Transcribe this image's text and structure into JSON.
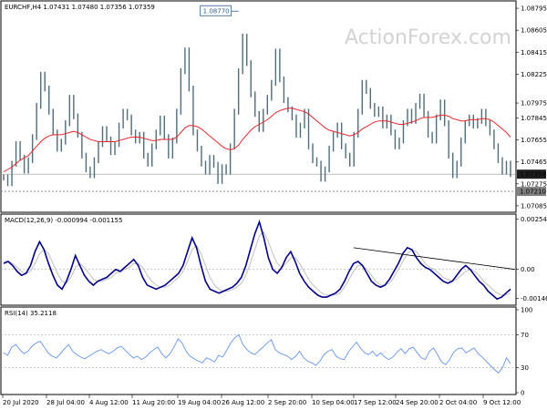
{
  "watermark": "ActionForex.com",
  "chart_data": [
    {
      "type": "candlestick",
      "header": "EURCHF,H4  1.07431 1.07480 1.07356 1.07359",
      "symbol": "EURCHF,H4",
      "ohlc": [
        1.07431,
        1.0748,
        1.07356,
        1.07359
      ],
      "y_ticks": [
        "1.07975",
        "1.07845",
        "1.07655",
        "1.07465",
        "1.07275",
        "1.07085"
      ],
      "y_ticks_top": [
        "1.08795",
        "1.08605",
        "1.08415",
        "1.08225"
      ],
      "ylim": [
        1.07045,
        1.08835
      ],
      "current_price": "1.07359",
      "support_level": "1.07210",
      "high_label": "1.08770",
      "high_value": 1.0877,
      "moving_average": "red",
      "close_series": [
        1.0733,
        1.0728,
        1.0745,
        1.0762,
        1.075,
        1.0739,
        1.0748,
        1.0768,
        1.0795,
        1.0822,
        1.081,
        1.079,
        1.0772,
        1.0758,
        1.0764,
        1.078,
        1.0802,
        1.0786,
        1.077,
        1.0752,
        1.074,
        1.0735,
        1.0748,
        1.0762,
        1.0775,
        1.0766,
        1.0755,
        1.0762,
        1.0778,
        1.079,
        1.0785,
        1.0772,
        1.0765,
        1.077,
        1.0752,
        1.0745,
        1.076,
        1.0772,
        1.0784,
        1.0768,
        1.0752,
        1.0765,
        1.079,
        1.0825,
        1.0843,
        1.081,
        1.0772,
        1.0758,
        1.0745,
        1.0738,
        1.075,
        1.0744,
        1.073,
        1.0742,
        1.0738,
        1.076,
        1.079,
        1.0825,
        1.0855,
        1.0832,
        1.0805,
        1.0788,
        1.0775,
        1.079,
        1.0802,
        1.0815,
        1.0842,
        1.0818,
        1.08,
        1.0792,
        1.0785,
        1.077,
        1.0778,
        1.079,
        1.076,
        1.0748,
        1.0745,
        1.0732,
        1.074,
        1.0758,
        1.077,
        1.0778,
        1.076,
        1.0752,
        1.0745,
        1.077,
        1.079,
        1.0815,
        1.0808,
        1.0795,
        1.0788,
        1.0792,
        1.0778,
        1.0785,
        1.0772,
        1.076,
        1.0765,
        1.078,
        1.079,
        1.0782,
        1.0795,
        1.0803,
        1.0788,
        1.077,
        1.0765,
        1.0785,
        1.0798,
        1.078,
        1.0752,
        1.0735,
        1.0745,
        1.0765,
        1.078,
        1.0785,
        1.0778,
        1.0782,
        1.079,
        1.078,
        1.0772,
        1.076,
        1.0748,
        1.0738,
        1.0745,
        1.0736
      ],
      "ma_series": [
        1.0738,
        1.074,
        1.0742,
        1.0745,
        1.0748,
        1.075,
        1.0752,
        1.0756,
        1.076,
        1.0764,
        1.0767,
        1.0769,
        1.077,
        1.077,
        1.077,
        1.0771,
        1.0772,
        1.0773,
        1.0772,
        1.077,
        1.0768,
        1.0766,
        1.0765,
        1.0764,
        1.0764,
        1.0764,
        1.0764,
        1.0764,
        1.0765,
        1.0766,
        1.0767,
        1.0768,
        1.0768,
        1.0768,
        1.0767,
        1.0766,
        1.0765,
        1.0765,
        1.0766,
        1.0766,
        1.0766,
        1.0766,
        1.0768,
        1.0772,
        1.0776,
        1.0778,
        1.0778,
        1.0777,
        1.0775,
        1.0772,
        1.0769,
        1.0766,
        1.0763,
        1.076,
        1.0758,
        1.0757,
        1.0758,
        1.0761,
        1.0766,
        1.077,
        1.0774,
        1.0777,
        1.0779,
        1.0781,
        1.0783,
        1.0786,
        1.0789,
        1.0791,
        1.0792,
        1.0793,
        1.0793,
        1.0792,
        1.0791,
        1.079,
        1.0788,
        1.0785,
        1.0782,
        1.0779,
        1.0776,
        1.0774,
        1.0773,
        1.0772,
        1.0771,
        1.077,
        1.0769,
        1.077,
        1.0772,
        1.0775,
        1.0777,
        1.0779,
        1.0781,
        1.0782,
        1.0782,
        1.0782,
        1.0781,
        1.078,
        1.0779,
        1.0779,
        1.078,
        1.0781,
        1.0782,
        1.0784,
        1.0785,
        1.0785,
        1.0785,
        1.0786,
        1.0787,
        1.0787,
        1.0786,
        1.0784,
        1.0783,
        1.0782,
        1.0782,
        1.0783,
        1.0783,
        1.0783,
        1.0784,
        1.0784,
        1.0783,
        1.0781,
        1.0778,
        1.0775,
        1.0772,
        1.0768
      ]
    },
    {
      "type": "line",
      "header": "MACD(12,26,9) -0.000994 -0.001155",
      "label": "MACD(12,26,9)",
      "main_value": "-0.000994",
      "signal_value": "-0.001155",
      "y_ticks": [
        "0.002547",
        "0.00",
        "-0.001468"
      ],
      "ylim": [
        -0.00172,
        0.00266
      ],
      "series": [
        {
          "name": "MACD",
          "color": "#00008b",
          "values": [
            0.0003,
            0.0004,
            0.0002,
            -0.0001,
            -0.0003,
            -0.0002,
            0.0002,
            0.0009,
            0.0014,
            0.001,
            0.0003,
            -0.0003,
            -0.0008,
            -0.001,
            -0.0006,
            0.0,
            0.0007,
            0.0002,
            -0.0003,
            -0.0006,
            -0.0008,
            -0.0006,
            -0.0005,
            -0.0004,
            -0.0002,
            0.0,
            -0.0001,
            0.0001,
            0.0003,
            0.0005,
            0.0002,
            -0.0004,
            -0.0008,
            -0.0009,
            -0.001,
            -0.0009,
            -0.0008,
            -0.0006,
            -0.0004,
            -0.0002,
            0.0002,
            0.0009,
            0.0016,
            0.0011,
            0.0002,
            -0.0006,
            -0.001,
            -0.0011,
            -0.0012,
            -0.0011,
            -0.001,
            -0.0009,
            -0.0007,
            -0.0004,
            0.0002,
            0.001,
            0.0018,
            0.0024,
            0.0016,
            0.0006,
            0.0,
            -0.0002,
            0.0001,
            0.0006,
            0.0009,
            0.0004,
            -0.0002,
            -0.0006,
            -0.0009,
            -0.0011,
            -0.0013,
            -0.0014,
            -0.0014,
            -0.0013,
            -0.0012,
            -0.001,
            -0.0006,
            -0.0001,
            0.0003,
            0.0004,
            0.0002,
            -0.0002,
            -0.0006,
            -0.0008,
            -0.0009,
            -0.0008,
            -0.0005,
            -0.0001,
            0.0003,
            0.0008,
            0.0011,
            0.001,
            0.0006,
            0.0003,
            0.0001,
            0.0,
            -0.0002,
            -0.0004,
            -0.0006,
            -0.0007,
            -0.0006,
            -0.0003,
            0.0,
            0.0002,
            0.0,
            -0.0003,
            -0.0006,
            -0.0008,
            -0.0011,
            -0.0013,
            -0.0015,
            -0.0014,
            -0.0012,
            -0.001
          ]
        },
        {
          "name": "Signal",
          "color": "#c0c0c0",
          "values": [
            0.0004,
            0.0004,
            0.0003,
            0.0001,
            -0.0001,
            -0.0002,
            -0.0001,
            0.0003,
            0.0008,
            0.001,
            0.0008,
            0.0003,
            -0.0002,
            -0.0006,
            -0.0007,
            -0.0004,
            0.0001,
            0.0003,
            0.0001,
            -0.0002,
            -0.0005,
            -0.0006,
            -0.0006,
            -0.0005,
            -0.0004,
            -0.0002,
            -0.0001,
            0.0,
            0.0001,
            0.0003,
            0.0003,
            0.0001,
            -0.0003,
            -0.0006,
            -0.0008,
            -0.0009,
            -0.0009,
            -0.0008,
            -0.0006,
            -0.0004,
            -0.0001,
            0.0004,
            0.001,
            0.0012,
            0.0008,
            0.0002,
            -0.0004,
            -0.0008,
            -0.001,
            -0.0011,
            -0.0011,
            -0.001,
            -0.0009,
            -0.0007,
            -0.0003,
            0.0003,
            0.001,
            0.0017,
            0.0019,
            0.0014,
            0.0008,
            0.0003,
            0.0001,
            0.0003,
            0.0006,
            0.0006,
            0.0003,
            -0.0001,
            -0.0005,
            -0.0008,
            -0.001,
            -0.0012,
            -0.0013,
            -0.0013,
            -0.0013,
            -0.0012,
            -0.0009,
            -0.0005,
            -0.0001,
            0.0002,
            0.0002,
            0.0,
            -0.0003,
            -0.0006,
            -0.0008,
            -0.0008,
            -0.0007,
            -0.0004,
            0.0,
            0.0004,
            0.0008,
            0.001,
            0.0009,
            0.0006,
            0.0003,
            0.0001,
            0.0,
            -0.0002,
            -0.0004,
            -0.0005,
            -0.0006,
            -0.0005,
            -0.0003,
            -0.0001,
            0.0,
            -0.0001,
            -0.0003,
            -0.0006,
            -0.0008,
            -0.001,
            -0.0012,
            -0.0013,
            -0.0013,
            -0.0012
          ]
        }
      ],
      "trendline": {
        "from_x": 78,
        "from_y": 0.0011,
        "to_x": 114,
        "to_y": 0.0
      }
    },
    {
      "type": "line",
      "header": "RSI(14) 35.2118",
      "label": "RSI(14)",
      "value": "35.2118",
      "y_ticks": [
        "100",
        "70",
        "30",
        "0"
      ],
      "ylim": [
        0,
        100
      ],
      "series": [
        {
          "name": "RSI",
          "color": "#6495ed",
          "values": [
            48,
            45,
            55,
            58,
            52,
            47,
            50,
            56,
            60,
            62,
            55,
            48,
            44,
            42,
            47,
            53,
            58,
            50,
            46,
            43,
            41,
            44,
            47,
            50,
            52,
            49,
            47,
            50,
            54,
            56,
            51,
            46,
            42,
            44,
            40,
            43,
            48,
            52,
            55,
            47,
            42,
            47,
            55,
            65,
            60,
            50,
            44,
            41,
            38,
            36,
            42,
            40,
            37,
            45,
            43,
            51,
            60,
            66,
            70,
            58,
            52,
            48,
            46,
            51,
            55,
            60,
            64,
            52,
            48,
            46,
            44,
            40,
            44,
            50,
            42,
            38,
            36,
            33,
            38,
            46,
            50,
            52,
            44,
            41,
            40,
            49,
            55,
            61,
            54,
            48,
            46,
            50,
            44,
            48,
            43,
            40,
            43,
            49,
            53,
            47,
            53,
            55,
            48,
            42,
            40,
            50,
            54,
            46,
            37,
            34,
            40,
            49,
            53,
            54,
            48,
            51,
            54,
            47,
            43,
            38,
            33,
            28,
            24,
            30,
            42,
            35
          ]
        }
      ]
    }
  ],
  "x_labels": [
    "20 Jul 2020",
    "28 Jul 04:00",
    "4 Aug 12:00",
    "11 Aug 20:00",
    "19 Aug 04:00",
    "26 Aug 12:00",
    "2 Sep 20:00",
    "10 Sep 04:00",
    "17 Sep 12:00",
    "24 Sep 20:00",
    "2 Oct 04:00",
    "9 Oct 12:00"
  ],
  "colors": {
    "candle": "#4f6d7a",
    "ma": "#e8262c",
    "macd": "#00008b",
    "signal": "#c0c0c0",
    "rsi": "#6495ed",
    "hline": "#7f7f7f",
    "price_box": "#2a5d8a"
  }
}
